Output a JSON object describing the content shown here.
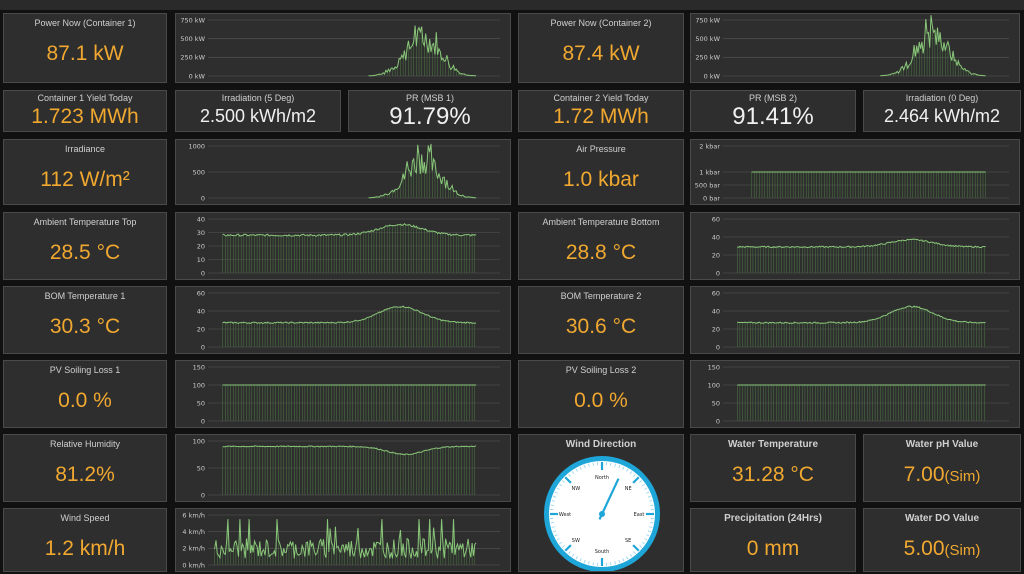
{
  "colors": {
    "accent": "#f0a830",
    "value_white": "#f0f0f0",
    "series": "#8ac77a",
    "panel": "#2e2e2e"
  },
  "tiles": {
    "power1": {
      "title": "Power Now (Container 1)",
      "value": "87.1 kW"
    },
    "power2": {
      "title": "Power Now (Container 2)",
      "value": "87.4 kW"
    },
    "yield1": {
      "title": "Container 1 Yield Today",
      "value": "1.723 MWh"
    },
    "irr5": {
      "title": "Irradiation (5 Deg)",
      "value": "2.500 kWh/m2"
    },
    "pr1": {
      "title": "PR (MSB 1)",
      "value": "91.79%"
    },
    "yield2": {
      "title": "Container 2 Yield Today",
      "value": "1.72 MWh"
    },
    "pr2": {
      "title": "PR (MSB 2)",
      "value": "91.41%"
    },
    "irr0": {
      "title": "Irradiation (0 Deg)",
      "value": "2.464 kWh/m2"
    },
    "irradiance": {
      "title": "Irradiance",
      "value": "112 W/m²"
    },
    "airp": {
      "title": "Air Pressure",
      "value": "1.0 kbar"
    },
    "ambtop": {
      "title": "Ambient Temperature Top",
      "value": "28.5 °C"
    },
    "ambbot": {
      "title": "Ambient Temperature Bottom",
      "value": "28.8 °C"
    },
    "bom1": {
      "title": "BOM Temperature 1",
      "value": "30.3 °C"
    },
    "bom2": {
      "title": "BOM Temperature 2",
      "value": "30.6 °C"
    },
    "soil1": {
      "title": "PV Soiling Loss 1",
      "value": "0.0 %"
    },
    "soil2": {
      "title": "PV Soiling Loss 2",
      "value": "0.0 %"
    },
    "rh": {
      "title": "Relative Humidity",
      "value": "81.2%"
    },
    "winddir": {
      "title": "Wind Direction"
    },
    "watertemp": {
      "title": "Water Temperature",
      "value": "31.28 °C"
    },
    "waterph": {
      "title": "Water pH Value",
      "value": "7.00",
      "suffix": "(Sim)"
    },
    "wind": {
      "title": "Wind Speed",
      "value": "1.2 km/h"
    },
    "precip": {
      "title": "Precipitation (24Hrs)",
      "value": "0 mm"
    },
    "waterdo": {
      "title": "Water DO Value",
      "value": "5.00",
      "suffix": "(Sim)"
    }
  },
  "compass": {
    "labels": [
      "North",
      "NE",
      "East",
      "SE",
      "South",
      "SW",
      "West",
      "NW"
    ],
    "needle_deg": 25
  },
  "chart_data": [
    {
      "id": "c_power1",
      "type": "area",
      "ylim": [
        0,
        750
      ],
      "ticks": [
        "750 kW",
        "500 kW",
        "250 kW",
        "0 kW"
      ],
      "tick_values": [
        750,
        500,
        250,
        0
      ],
      "shape": "bell_spiky",
      "peak": 600,
      "start": 0.55,
      "end": 0.92,
      "baseline": 0
    },
    {
      "id": "c_power2",
      "type": "area",
      "ylim": [
        0,
        750
      ],
      "ticks": [
        "750 kW",
        "500 kW",
        "250 kW",
        "0 kW"
      ],
      "tick_values": [
        750,
        500,
        250,
        0
      ],
      "shape": "bell_spiky",
      "peak": 620,
      "start": 0.55,
      "end": 0.92,
      "baseline": 0
    },
    {
      "id": "c_irr",
      "type": "area",
      "ylim": [
        0,
        1000
      ],
      "ticks": [
        "1000",
        "500",
        "0"
      ],
      "tick_values": [
        1000,
        500,
        0
      ],
      "shape": "bell_spiky",
      "peak": 850,
      "start": 0.55,
      "end": 0.92,
      "baseline": 0
    },
    {
      "id": "c_airp",
      "type": "area",
      "ylim": [
        0,
        2000
      ],
      "ticks": [
        "2 kbar",
        "1 kbar",
        "500 bar",
        "0 bar"
      ],
      "tick_values": [
        2000,
        1000,
        500,
        0
      ],
      "shape": "flat",
      "level": 1000,
      "start": 0.1,
      "end": 0.92,
      "baseline": 0
    },
    {
      "id": "c_ambtop",
      "type": "area",
      "ylim": [
        0,
        40
      ],
      "ticks": [
        "40",
        "30",
        "20",
        "10",
        "0"
      ],
      "tick_values": [
        40,
        30,
        20,
        10,
        0
      ],
      "shape": "temp",
      "base": 28,
      "peak": 36,
      "start": 0.05,
      "end": 0.92,
      "baseline": 0
    },
    {
      "id": "c_ambbot",
      "type": "area",
      "ylim": [
        0,
        60
      ],
      "ticks": [
        "60",
        "40",
        "20",
        "0"
      ],
      "tick_values": [
        60,
        40,
        20,
        0
      ],
      "shape": "temp",
      "base": 29,
      "peak": 37,
      "start": 0.05,
      "end": 0.92,
      "baseline": 0
    },
    {
      "id": "c_bom1",
      "type": "area",
      "ylim": [
        0,
        60
      ],
      "ticks": [
        "60",
        "40",
        "20",
        "0"
      ],
      "tick_values": [
        60,
        40,
        20,
        0
      ],
      "shape": "temp",
      "base": 27,
      "peak": 45,
      "start": 0.05,
      "end": 0.92,
      "baseline": 0
    },
    {
      "id": "c_bom2",
      "type": "area",
      "ylim": [
        0,
        60
      ],
      "ticks": [
        "60",
        "40",
        "20",
        "0"
      ],
      "tick_values": [
        60,
        40,
        20,
        0
      ],
      "shape": "temp",
      "base": 27,
      "peak": 45,
      "start": 0.05,
      "end": 0.92,
      "baseline": 0
    },
    {
      "id": "c_soil1",
      "type": "area",
      "ylim": [
        0,
        150
      ],
      "ticks": [
        "150",
        "100",
        "50",
        "0"
      ],
      "tick_values": [
        150,
        100,
        50,
        0
      ],
      "shape": "flat",
      "level": 100,
      "start": 0.05,
      "end": 0.92,
      "baseline": 0
    },
    {
      "id": "c_soil2",
      "type": "area",
      "ylim": [
        0,
        150
      ],
      "ticks": [
        "150",
        "100",
        "50",
        "0"
      ],
      "tick_values": [
        150,
        100,
        50,
        0
      ],
      "shape": "flat",
      "level": 100,
      "start": 0.05,
      "end": 0.92,
      "baseline": 0
    },
    {
      "id": "c_rh",
      "type": "area",
      "ylim": [
        0,
        100
      ],
      "ticks": [
        "100",
        "50",
        "0"
      ],
      "tick_values": [
        100,
        50,
        0
      ],
      "shape": "humid",
      "base": 90,
      "low": 75,
      "start": 0.05,
      "end": 0.92,
      "baseline": 0
    },
    {
      "id": "c_wind",
      "type": "area",
      "ylim": [
        0,
        6
      ],
      "ticks": [
        "6 km/h",
        "4 km/h",
        "2 km/h",
        "0 km/h"
      ],
      "tick_values": [
        6,
        4,
        2,
        0
      ],
      "shape": "noisy",
      "mean": 1.5,
      "max": 5.5,
      "start": 0.02,
      "end": 0.92,
      "baseline": 0
    }
  ]
}
